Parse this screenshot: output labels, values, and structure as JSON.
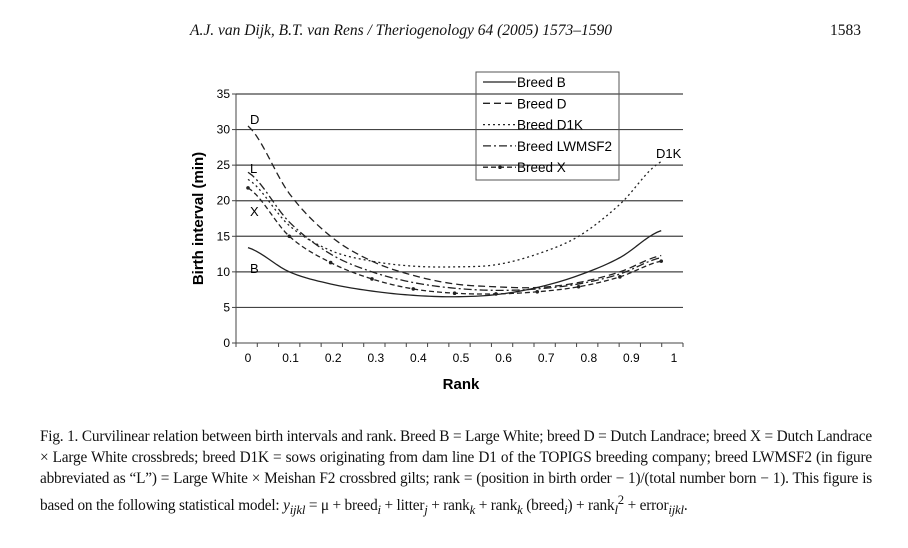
{
  "header": {
    "running_title": "A.J. van Dijk, B.T. van Rens / Theriogenology 64 (2005) 1573–1590",
    "page_number": "1583"
  },
  "chart_data": {
    "type": "line",
    "xlabel": "Rank",
    "ylabel": "Birth interval (min)",
    "xlim": [
      0,
      1
    ],
    "ylim": [
      0,
      35
    ],
    "x": [
      0,
      0.1,
      0.2,
      0.3,
      0.4,
      0.5,
      0.6,
      0.7,
      0.8,
      0.9,
      1
    ],
    "xticks": [
      "0",
      "0.1",
      "0.2",
      "0.3",
      "0.4",
      "0.5",
      "0.6",
      "0.7",
      "0.8",
      "0.9",
      "1"
    ],
    "yticks": [
      "0",
      "5",
      "10",
      "15",
      "20",
      "25",
      "30",
      "35"
    ],
    "grid": "horizontal",
    "legend": "top-center",
    "series": [
      {
        "name": "Breed B",
        "label": "B",
        "style": "solid",
        "values": [
          13.4,
          10.0,
          8.3,
          7.3,
          6.7,
          6.5,
          6.8,
          7.8,
          9.5,
          12.0,
          15.8
        ]
      },
      {
        "name": "Breed D",
        "label": "D",
        "style": "dashed",
        "values": [
          30.5,
          21.0,
          15.0,
          11.5,
          9.5,
          8.3,
          7.9,
          7.8,
          8.5,
          10.0,
          12.3
        ]
      },
      {
        "name": "Breed D1K",
        "label": "D1K",
        "style": "dotted",
        "values": [
          23.0,
          16.5,
          13.0,
          11.5,
          10.8,
          10.7,
          11.0,
          12.5,
          15.0,
          19.5,
          25.5
        ]
      },
      {
        "name": "Breed LWMSF2",
        "label": "L",
        "style": "dashdot",
        "values": [
          24.0,
          17.0,
          12.5,
          10.0,
          8.5,
          7.7,
          7.4,
          7.6,
          8.3,
          9.7,
          12.0
        ]
      },
      {
        "name": "Breed X",
        "label": "X",
        "style": "dash-marker",
        "values": [
          21.8,
          15.0,
          11.3,
          9.0,
          7.6,
          7.0,
          6.9,
          7.2,
          7.9,
          9.3,
          11.5
        ]
      }
    ]
  },
  "caption": {
    "text": "Fig. 1.  Curvilinear relation between birth intervals and rank. Breed B = Large White; breed D = Dutch Landrace; breed X = Dutch Landrace × Large White crossbreds; breed D1K = sows originating from dam line D1 of the TOPIGS breeding company; breed LWMSF2 (in figure abbreviated as “L”) = Large White × Meishan F2 crossbred gilts; rank = (position in birth order − 1)/(total number born − 1). This figure is based on the following statistical model: ",
    "model": {
      "y": "y",
      "y_sub": "ijkl",
      "p1": " = μ + breed",
      "s1": "i",
      "p2": " + litter",
      "s2": "j",
      "p3": " + rank",
      "s3": "k",
      "p4": " + rank",
      "s4": "k",
      "p5": " (breed",
      "s5": "i",
      "p6": ") + rank",
      "s6": "l",
      "sup": "2",
      "p7": " + error",
      "s7": "ijkl",
      "end": "."
    }
  }
}
